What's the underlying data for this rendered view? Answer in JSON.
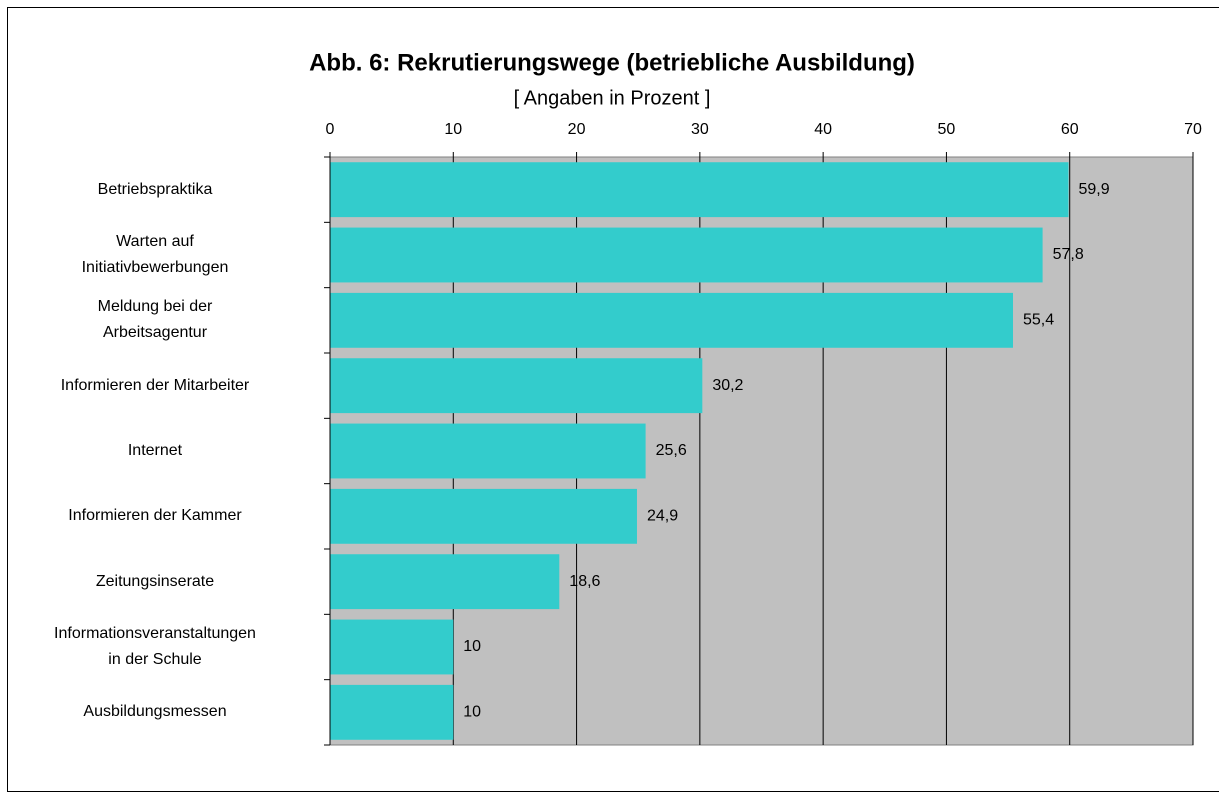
{
  "chart_data": {
    "type": "bar",
    "orientation": "horizontal",
    "title": "Abb. 6: Rekrutierungswege (betriebliche Ausbildung)",
    "subtitle": "[ Angaben in Prozent ]",
    "categories": [
      "Betriebspraktika",
      "Warten auf\nInitiativbewerbungen",
      "Meldung bei der\nArbeitsagentur",
      "Informieren der Mitarbeiter",
      "Internet",
      "Informieren der Kammer",
      "Zeitungsinserate",
      "Informationsveranstaltungen\nin der Schule",
      "Ausbildungsmessen"
    ],
    "values": [
      59.9,
      57.8,
      55.4,
      30.2,
      25.6,
      24.9,
      18.6,
      10,
      10
    ],
    "value_labels": [
      "59,9",
      "57,8",
      "55,4",
      "30,2",
      "25,6",
      "24,9",
      "18,6",
      "10",
      "10"
    ],
    "color": "#33cccc",
    "plot_background": "#c0c0c0",
    "xlim": [
      0,
      70
    ],
    "xticks": [
      0,
      10,
      20,
      30,
      40,
      50,
      60,
      70
    ],
    "grid": true
  }
}
